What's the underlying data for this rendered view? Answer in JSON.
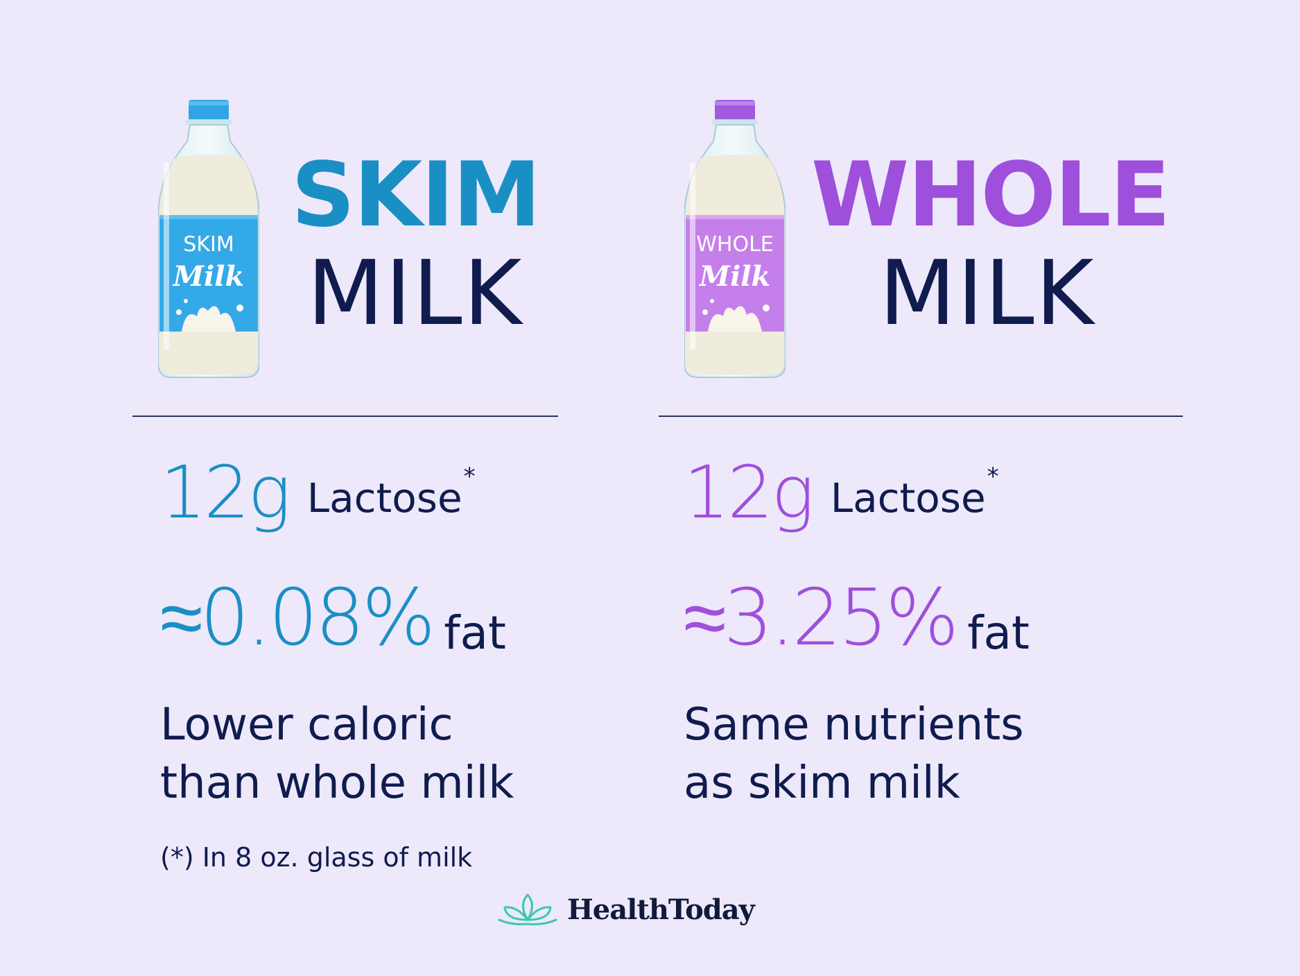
{
  "skim": {
    "bottle_label_top": "SKIM",
    "bottle_label_script": "Milk",
    "title_big": "SKIM",
    "title_sub": "MILK",
    "lactose_amount": "12g",
    "lactose_label": "Lactose",
    "lactose_marker": "*",
    "fat_percent": "≈0.08%",
    "fat_label": "fat",
    "desc_line1": "Lower caloric",
    "desc_line2": "than whole milk",
    "accent": "#1A8FC4"
  },
  "whole": {
    "bottle_label_top": "WHOLE",
    "bottle_label_script": "Milk",
    "title_big": "WHOLE",
    "title_sub": "MILK",
    "lactose_amount": "12g",
    "lactose_label": "Lactose",
    "lactose_marker": "*",
    "fat_percent": "≈3.25%",
    "fat_label": "fat",
    "desc_line1": "Same nutrients",
    "desc_line2": "as skim milk",
    "accent": "#9E4FDB"
  },
  "footnote": "(*) In 8 oz. glass of milk",
  "brand": {
    "name": "HealthToday",
    "icon": "lotus-icon",
    "color": "#38C9B0"
  },
  "colors": {
    "background": "#EEE8FB",
    "text": "#0F1C4D"
  }
}
